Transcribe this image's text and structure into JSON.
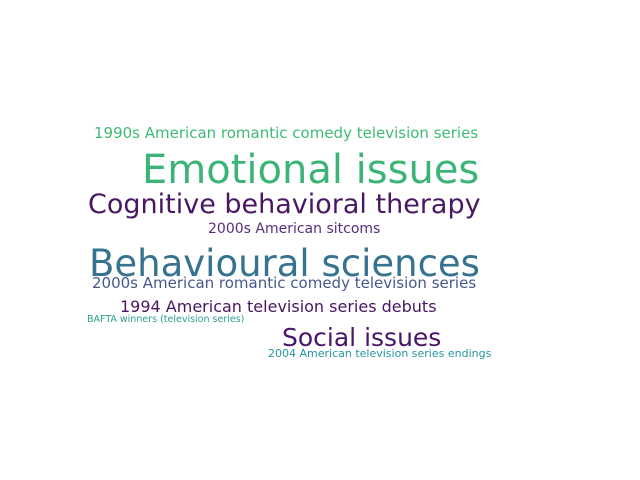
{
  "words": [
    {
      "id": "w-1990s",
      "text": "1990s American romantic comedy television series",
      "color": "#3dbb74"
    },
    {
      "id": "w-emo",
      "text": "Emotional issues",
      "color": "#3cb478"
    },
    {
      "id": "w-cbt",
      "text": "Cognitive behavioral therapy",
      "color": "#4a1763"
    },
    {
      "id": "w-2000sit",
      "text": "2000s American sitcoms",
      "color": "#582c7e"
    },
    {
      "id": "w-behav",
      "text": "Behavioural sciences",
      "color": "#35738f"
    },
    {
      "id": "w-2000s",
      "text": "2000s American romantic comedy television series",
      "color": "#46588c"
    },
    {
      "id": "w-1994",
      "text": "1994 American television series debuts",
      "color": "#4a1462"
    },
    {
      "id": "w-bafta",
      "text": "BAFTA winners (television series)",
      "color": "#2a9f8c"
    },
    {
      "id": "w-social",
      "text": "Social issues",
      "color": "#481567"
    },
    {
      "id": "w-2004",
      "text": "2004 American television series endings",
      "color": "#2595a0"
    }
  ]
}
